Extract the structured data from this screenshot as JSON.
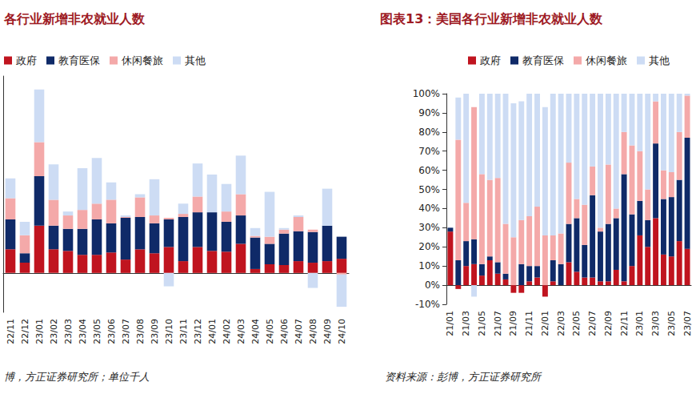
{
  "chart_data": [
    {
      "type": "bar",
      "title": "各行业新增非农就业人数",
      "source": "博，方正证券研究所；单位千人",
      "stacked": true,
      "grid": false,
      "tick_labels": "x",
      "legend": "top-left",
      "categories": [
        "22/11",
        "22/12",
        "23/01",
        "23/02",
        "23/03",
        "23/04",
        "23/05",
        "23/06",
        "23/07",
        "23/08",
        "23/09",
        "23/10",
        "23/11",
        "23/12",
        "24/01",
        "24/02",
        "24/03",
        "24/04",
        "24/05",
        "24/06",
        "24/07",
        "24/08",
        "24/09",
        "24/10"
      ],
      "ylim": [
        -100,
        500
      ],
      "series": [
        {
          "name": "政府",
          "color": "#c0141f",
          "values": [
            60,
            26,
            120,
            60,
            56,
            46,
            46,
            52,
            34,
            60,
            50,
            66,
            30,
            66,
            56,
            54,
            74,
            10,
            22,
            20,
            30,
            26,
            30,
            36
          ]
        },
        {
          "name": "教育医保",
          "color": "#0f2a68",
          "values": [
            76,
            24,
            126,
            60,
            56,
            66,
            90,
            74,
            106,
            82,
            76,
            70,
            112,
            88,
            98,
            76,
            72,
            80,
            52,
            80,
            76,
            78,
            90,
            56
          ]
        },
        {
          "name": "休闲餐旅",
          "color": "#f4a9a9",
          "values": [
            54,
            46,
            86,
            66,
            34,
            48,
            40,
            60,
            2,
            50,
            20,
            4,
            8,
            40,
            0,
            26,
            54,
            4,
            18,
            10,
            36,
            6,
            0,
            -4
          ]
        },
        {
          "name": "其他",
          "color": "#cddcf4",
          "values": [
            50,
            34,
            134,
            90,
            10,
            106,
            116,
            44,
            4,
            8,
            92,
            -34,
            26,
            84,
            96,
            70,
            98,
            20,
            114,
            4,
            4,
            -38,
            94,
            -82
          ]
        }
      ]
    },
    {
      "type": "bar",
      "title": "图表13：美国各行业新增非农就业人数",
      "source": "资料来源：彭博，方正证券研究所",
      "stacked": true,
      "grid": false,
      "legend": "top-left",
      "categories": [
        "21/01",
        null,
        "21/03",
        null,
        "21/05",
        null,
        "21/07",
        null,
        "21/09",
        null,
        "21/11",
        null,
        "22/01",
        null,
        "22/03",
        null,
        "22/05",
        null,
        "22/07",
        null,
        "22/09",
        null,
        "22/11",
        null,
        "23/01",
        null,
        "23/03",
        null,
        "23/05",
        null,
        "23/07"
      ],
      "ylim": [
        -10,
        100
      ],
      "yticks": [
        {
          "value": -10,
          "label": "-10%"
        },
        {
          "value": 0,
          "label": "0%"
        },
        {
          "value": 10,
          "label": "10%"
        },
        {
          "value": 20,
          "label": "20%"
        },
        {
          "value": 30,
          "label": "30%"
        },
        {
          "value": 40,
          "label": "40%"
        },
        {
          "value": 50,
          "label": "50%"
        },
        {
          "value": 60,
          "label": "60%"
        },
        {
          "value": 70,
          "label": "70%"
        },
        {
          "value": 80,
          "label": "80%"
        },
        {
          "value": 90,
          "label": "90%"
        },
        {
          "value": 100,
          "label": "100%"
        }
      ],
      "series": [
        {
          "name": "政府",
          "color": "#c0141f",
          "values": [
            28,
            -2,
            10,
            11,
            5,
            13,
            6,
            3,
            -4,
            -4,
            2,
            4,
            -6,
            2,
            0,
            12,
            7,
            4,
            4,
            2,
            2,
            8,
            2,
            10,
            26,
            20,
            35,
            16,
            15,
            23,
            19
          ]
        },
        {
          "name": "教育医保",
          "color": "#0f2a68",
          "values": [
            2,
            13,
            13,
            13,
            6,
            2,
            6,
            3,
            0,
            11,
            8,
            6,
            0,
            11,
            11,
            20,
            28,
            17,
            43,
            26,
            30,
            27,
            56,
            27,
            18,
            14,
            39,
            29,
            31,
            32,
            58
          ]
        },
        {
          "name": "休闲餐旅",
          "color": "#f4a9a9",
          "values": [
            0,
            63,
            20,
            69,
            47,
            40,
            44,
            26,
            25,
            23,
            26,
            31,
            26,
            13,
            16,
            32,
            10,
            21,
            15,
            2,
            31,
            5,
            22,
            36,
            26,
            16,
            22,
            15,
            13,
            25,
            22
          ]
        },
        {
          "name": "其他",
          "color": "#cddcf4",
          "values": [
            0,
            22,
            57,
            -6,
            42,
            45,
            44,
            68,
            70,
            62,
            64,
            59,
            67,
            74,
            73,
            36,
            55,
            58,
            38,
            70,
            37,
            60,
            20,
            27,
            30,
            50,
            4,
            40,
            41,
            20,
            1
          ]
        }
      ]
    }
  ]
}
